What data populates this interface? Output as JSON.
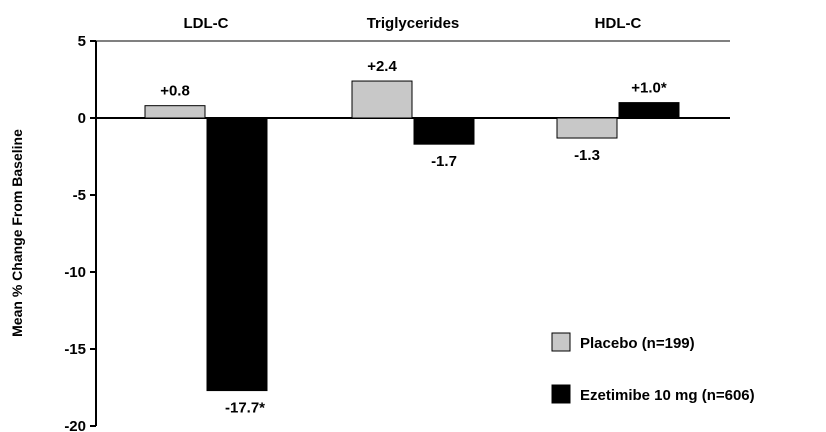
{
  "chart_data": {
    "type": "bar",
    "categories": [
      "LDL-C",
      "Triglycerides",
      "HDL-C"
    ],
    "series": [
      {
        "name": "Placebo (n=199)",
        "values": [
          0.8,
          2.4,
          -1.3
        ],
        "labels": [
          "+0.8",
          "+2.4",
          "-1.3"
        ],
        "color": "#c8c8c8"
      },
      {
        "name": "Ezetimibe 10 mg (n=606)",
        "values": [
          -17.7,
          -1.7,
          1.0
        ],
        "labels": [
          "-17.7*",
          "-1.7",
          "+1.0*"
        ],
        "color": "#000000"
      }
    ],
    "ylabel": "Mean % Change From Baseline",
    "ylim": [
      -20,
      5
    ],
    "yticks": [
      "5",
      "0",
      "-5",
      "-10",
      "-15",
      "-20"
    ],
    "ytick_values": [
      5,
      0,
      -5,
      -10,
      -15,
      -20
    ],
    "legend_position": "bottom-right",
    "grid": false
  }
}
